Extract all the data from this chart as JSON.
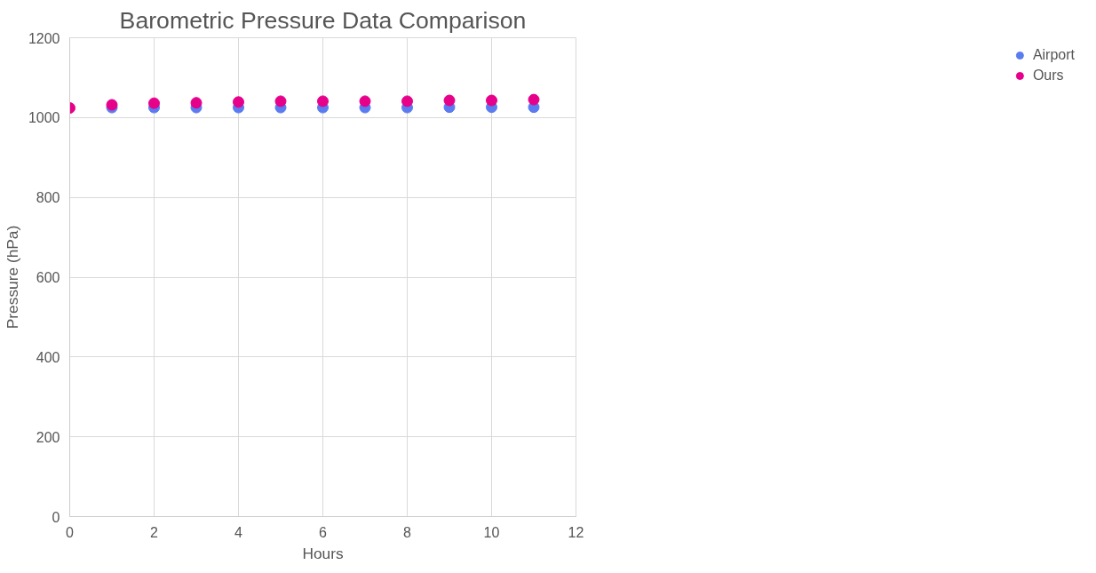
{
  "chart_data": {
    "type": "scatter",
    "title": "Barometric Pressure Data Comparison",
    "xlabel": "Hours",
    "ylabel": "Pressure (hPa)",
    "x": [
      0,
      1,
      2,
      3,
      4,
      5,
      6,
      7,
      8,
      9,
      10,
      11
    ],
    "series": [
      {
        "name": "Airport",
        "color": "#5b7cf0",
        "values": [
          null,
          1025,
          1025,
          1025,
          1025,
          1025,
          1025,
          1025,
          1025,
          1026,
          1026,
          1026
        ]
      },
      {
        "name": "Ours",
        "color": "#e6008a",
        "values": [
          1024,
          1032,
          1036,
          1037,
          1039,
          1041,
          1041,
          1041,
          1041,
          1043,
          1043,
          1045
        ]
      }
    ],
    "xlim": [
      0,
      12
    ],
    "xticks": [
      0,
      2,
      4,
      6,
      8,
      10,
      12
    ],
    "ylim": [
      0,
      1200
    ],
    "yticks": [
      0,
      200,
      400,
      600,
      800,
      1000,
      1200
    ],
    "grid": true,
    "legend": "right",
    "marker": "circle"
  }
}
